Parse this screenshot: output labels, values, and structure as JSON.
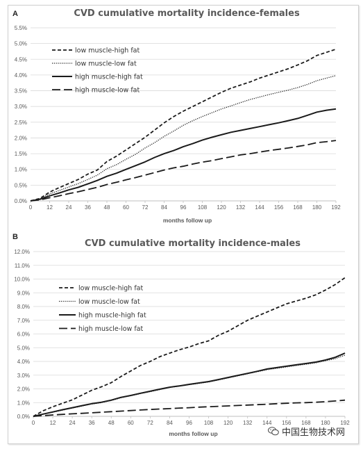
{
  "chart_data": [
    {
      "panel": "A",
      "type": "line",
      "title": "CVD cumulative mortality incidence-females",
      "xlabel": "months follow up",
      "ylabel": "",
      "xlim": [
        0,
        192
      ],
      "ylim": [
        0,
        5.5
      ],
      "x_ticks": [
        "0",
        "12",
        "24",
        "36",
        "48",
        "60",
        "72",
        "84",
        "96",
        "108",
        "120",
        "132",
        "144",
        "156",
        "168",
        "180",
        "192"
      ],
      "y_ticks": [
        "0.0%",
        "0.5%",
        "1.0%",
        "1.5%",
        "2.0%",
        "2.5%",
        "3.0%",
        "3.5%",
        "4.0%",
        "4.5%",
        "5.0%",
        "5.5%"
      ],
      "legend_position": "top-left",
      "x": [
        0,
        6,
        12,
        18,
        24,
        30,
        36,
        42,
        48,
        54,
        60,
        66,
        72,
        78,
        84,
        90,
        96,
        102,
        108,
        114,
        120,
        126,
        132,
        138,
        144,
        150,
        156,
        162,
        168,
        174,
        180,
        186,
        192
      ],
      "series": [
        {
          "name": "low muscle-high fat",
          "style": "short-dash",
          "values": [
            0,
            0.08,
            0.28,
            0.42,
            0.55,
            0.68,
            0.85,
            0.98,
            1.25,
            1.42,
            1.62,
            1.82,
            2.02,
            2.25,
            2.48,
            2.68,
            2.85,
            3.0,
            3.15,
            3.3,
            3.45,
            3.58,
            3.68,
            3.78,
            3.9,
            4.0,
            4.1,
            4.2,
            4.32,
            4.45,
            4.62,
            4.72,
            4.82
          ]
        },
        {
          "name": "low muscle-low fat",
          "style": "dotted",
          "values": [
            0,
            0.07,
            0.22,
            0.33,
            0.44,
            0.55,
            0.68,
            0.82,
            1.02,
            1.15,
            1.32,
            1.48,
            1.68,
            1.85,
            2.05,
            2.22,
            2.4,
            2.55,
            2.68,
            2.8,
            2.92,
            3.02,
            3.12,
            3.22,
            3.3,
            3.38,
            3.45,
            3.52,
            3.6,
            3.7,
            3.82,
            3.9,
            3.98
          ]
        },
        {
          "name": "high muscle-high fat",
          "style": "solid",
          "values": [
            0,
            0.05,
            0.16,
            0.25,
            0.35,
            0.43,
            0.54,
            0.65,
            0.78,
            0.88,
            1.0,
            1.12,
            1.24,
            1.38,
            1.5,
            1.6,
            1.72,
            1.82,
            1.93,
            2.02,
            2.1,
            2.18,
            2.24,
            2.3,
            2.36,
            2.42,
            2.48,
            2.55,
            2.62,
            2.72,
            2.82,
            2.88,
            2.92
          ]
        },
        {
          "name": "high muscle-low fat",
          "style": "long-dash",
          "values": [
            0,
            0.03,
            0.1,
            0.16,
            0.23,
            0.29,
            0.36,
            0.43,
            0.52,
            0.59,
            0.67,
            0.74,
            0.82,
            0.9,
            0.98,
            1.05,
            1.1,
            1.17,
            1.23,
            1.28,
            1.34,
            1.4,
            1.46,
            1.5,
            1.55,
            1.6,
            1.64,
            1.68,
            1.73,
            1.78,
            1.85,
            1.88,
            1.92
          ]
        }
      ]
    },
    {
      "panel": "B",
      "type": "line",
      "title": "CVD cumulative mortality incidence-males",
      "xlabel": "months follow up",
      "ylabel": "",
      "xlim": [
        0,
        192
      ],
      "ylim": [
        0,
        12
      ],
      "x_ticks": [
        "0",
        "12",
        "24",
        "36",
        "48",
        "60",
        "72",
        "84",
        "96",
        "108",
        "120",
        "132",
        "144",
        "156",
        "168",
        "180",
        "192"
      ],
      "y_ticks": [
        "0.0%",
        "1.0%",
        "2.0%",
        "3.0%",
        "4.0%",
        "5.0%",
        "6.0%",
        "7.0%",
        "8.0%",
        "9.0%",
        "10.0%",
        "11.0%",
        "12.0%"
      ],
      "legend_position": "top-left",
      "x": [
        0,
        6,
        12,
        18,
        24,
        30,
        36,
        42,
        48,
        54,
        60,
        66,
        72,
        78,
        84,
        90,
        96,
        102,
        108,
        114,
        120,
        126,
        132,
        138,
        144,
        150,
        156,
        162,
        168,
        174,
        180,
        186,
        192
      ],
      "series": [
        {
          "name": "low muscle-high fat",
          "style": "short-dash",
          "values": [
            0,
            0.4,
            0.7,
            0.95,
            1.2,
            1.55,
            1.9,
            2.15,
            2.45,
            2.9,
            3.3,
            3.7,
            4.0,
            4.35,
            4.6,
            4.85,
            5.05,
            5.3,
            5.5,
            5.9,
            6.2,
            6.6,
            7.0,
            7.3,
            7.6,
            7.9,
            8.2,
            8.4,
            8.6,
            8.85,
            9.2,
            9.6,
            10.1
          ]
        },
        {
          "name": "low muscle-low fat",
          "style": "dotted",
          "values": [
            0,
            0.15,
            0.3,
            0.45,
            0.6,
            0.75,
            0.9,
            1.0,
            1.15,
            1.35,
            1.5,
            1.65,
            1.8,
            1.95,
            2.1,
            2.2,
            2.3,
            2.4,
            2.5,
            2.65,
            2.8,
            2.95,
            3.1,
            3.25,
            3.4,
            3.5,
            3.6,
            3.7,
            3.8,
            3.9,
            4.05,
            4.2,
            4.45
          ]
        },
        {
          "name": "high muscle-high fat",
          "style": "solid",
          "values": [
            0,
            0.16,
            0.32,
            0.48,
            0.63,
            0.78,
            0.92,
            1.03,
            1.18,
            1.38,
            1.52,
            1.68,
            1.83,
            1.98,
            2.12,
            2.22,
            2.33,
            2.43,
            2.53,
            2.68,
            2.83,
            2.98,
            3.13,
            3.28,
            3.45,
            3.55,
            3.65,
            3.75,
            3.85,
            3.95,
            4.1,
            4.3,
            4.6
          ]
        },
        {
          "name": "high muscle-low fat",
          "style": "long-dash",
          "values": [
            0,
            0.05,
            0.1,
            0.14,
            0.18,
            0.22,
            0.26,
            0.3,
            0.34,
            0.38,
            0.42,
            0.46,
            0.5,
            0.53,
            0.56,
            0.6,
            0.63,
            0.67,
            0.7,
            0.73,
            0.76,
            0.79,
            0.82,
            0.85,
            0.88,
            0.92,
            0.95,
            0.98,
            1.0,
            1.03,
            1.07,
            1.12,
            1.18
          ]
        }
      ]
    }
  ],
  "panels": {
    "A": {
      "label": "A"
    },
    "B": {
      "label": "B"
    }
  },
  "colors": {
    "line": "#1a1a1a",
    "grid": "#d9d9d9",
    "axis_text": "#595959",
    "title": "#595959"
  },
  "watermark": {
    "text": "中国生物技术网",
    "icon": "wechat-icon"
  }
}
